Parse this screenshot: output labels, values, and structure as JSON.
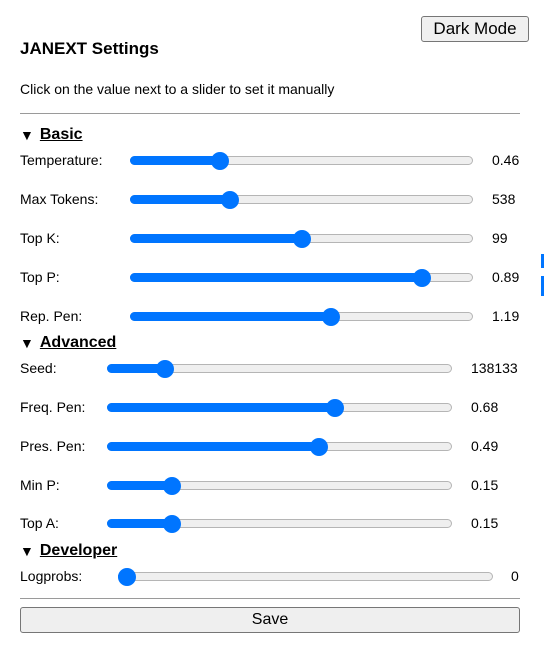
{
  "header": {
    "dark_mode_label": "Dark Mode",
    "title": "JANEXT Settings",
    "hint": "Click on the value next to a slider to set it manually"
  },
  "colors": {
    "accent": "#0075ff",
    "track": "#efefef",
    "divider": "#9a9a9a"
  },
  "sections": [
    {
      "title": "Basic",
      "expanded": true,
      "sliders": [
        {
          "label": "Temperature:",
          "value": "0.46",
          "position": 0.25
        },
        {
          "label": "Max Tokens:",
          "value": "538",
          "position": 0.28
        },
        {
          "label": "Top K:",
          "value": "99",
          "position": 0.5
        },
        {
          "label": "Top P:",
          "value": "0.89",
          "position": 0.87
        },
        {
          "label": "Rep. Pen:",
          "value": "1.19",
          "position": 0.59
        }
      ]
    },
    {
      "title": "Advanced",
      "expanded": true,
      "sliders": [
        {
          "label": "Seed:",
          "value": "138133",
          "position": 0.15
        },
        {
          "label": "Freq. Pen:",
          "value": "0.68",
          "position": 0.67
        },
        {
          "label": "Pres. Pen:",
          "value": "0.49",
          "position": 0.62
        },
        {
          "label": "Min P:",
          "value": "0.15",
          "position": 0.17
        },
        {
          "label": "Top A:",
          "value": "0.15",
          "position": 0.17
        }
      ]
    },
    {
      "title": "Developer",
      "expanded": true,
      "sliders": [
        {
          "label": "Logprobs:",
          "value": "0",
          "position": 0.0
        }
      ]
    }
  ],
  "save_label": "Save"
}
